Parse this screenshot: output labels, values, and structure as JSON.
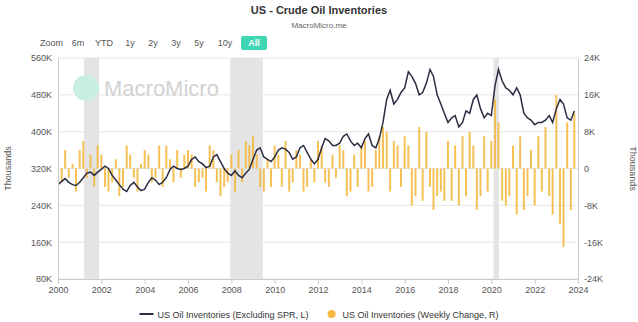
{
  "chart_data": {
    "type": "combo",
    "title": "US - Crude Oil Inventories",
    "subtitle": "MacroMicro.me",
    "watermark": "MacroMicro",
    "zoom_label": "Zoom",
    "zoom_buttons": [
      "6m",
      "YTD",
      "1y",
      "2y",
      "3y",
      "5y",
      "10y",
      "All"
    ],
    "y_label": "Thousands",
    "y2_label": "Thousands",
    "grid": true,
    "legend": "bottom",
    "bands": [
      [
        2001.2,
        2001.9
      ],
      [
        2007.95,
        2009.45
      ],
      [
        2020.1,
        2020.35
      ]
    ],
    "xlim": [
      2000,
      2024
    ],
    "xticks": [
      2000,
      2002,
      2004,
      2006,
      2008,
      2010,
      2012,
      2014,
      2016,
      2018,
      2020,
      2022,
      2024
    ],
    "ylim": [
      80000,
      560000
    ],
    "yticks": [
      {
        "value": 80000,
        "label": "80K"
      },
      {
        "value": 160000,
        "label": "160K"
      },
      {
        "value": 240000,
        "label": "240K"
      },
      {
        "value": 320000,
        "label": "320K"
      },
      {
        "value": 400000,
        "label": "400K"
      },
      {
        "value": 480000,
        "label": "480K"
      },
      {
        "value": 560000,
        "label": "560K"
      }
    ],
    "y2lim": [
      -24000,
      24000
    ],
    "y2ticks": [
      {
        "value": -24000,
        "label": "-24K"
      },
      {
        "value": -16000,
        "label": "-16K"
      },
      {
        "value": -8000,
        "label": "-8K"
      },
      0,
      {
        "value": 8000,
        "label": "8K"
      },
      {
        "value": 16000,
        "label": "16K"
      },
      {
        "value": 24000,
        "label": "24K"
      }
    ],
    "x": [
      2000,
      2000.17,
      2000.33,
      2000.5,
      2000.67,
      2000.83,
      2001,
      2001.17,
      2001.33,
      2001.5,
      2001.67,
      2001.83,
      2002,
      2002.17,
      2002.33,
      2002.5,
      2002.67,
      2002.83,
      2003,
      2003.17,
      2003.33,
      2003.5,
      2003.67,
      2003.83,
      2004,
      2004.17,
      2004.33,
      2004.5,
      2004.67,
      2004.83,
      2005,
      2005.17,
      2005.33,
      2005.5,
      2005.67,
      2005.83,
      2006,
      2006.17,
      2006.33,
      2006.5,
      2006.67,
      2006.83,
      2007,
      2007.17,
      2007.33,
      2007.5,
      2007.67,
      2007.83,
      2008,
      2008.17,
      2008.33,
      2008.5,
      2008.67,
      2008.83,
      2009,
      2009.17,
      2009.33,
      2009.5,
      2009.67,
      2009.83,
      2010,
      2010.17,
      2010.33,
      2010.5,
      2010.67,
      2010.83,
      2011,
      2011.17,
      2011.33,
      2011.5,
      2011.67,
      2011.83,
      2012,
      2012.17,
      2012.33,
      2012.5,
      2012.67,
      2012.83,
      2013,
      2013.17,
      2013.33,
      2013.5,
      2013.67,
      2013.83,
      2014,
      2014.17,
      2014.33,
      2014.5,
      2014.67,
      2014.83,
      2015,
      2015.17,
      2015.33,
      2015.5,
      2015.67,
      2015.83,
      2016,
      2016.17,
      2016.33,
      2016.5,
      2016.67,
      2016.83,
      2017,
      2017.17,
      2017.33,
      2017.5,
      2017.67,
      2017.83,
      2018,
      2018.17,
      2018.33,
      2018.5,
      2018.67,
      2018.83,
      2019,
      2019.17,
      2019.33,
      2019.5,
      2019.67,
      2019.83,
      2020,
      2020.17,
      2020.33,
      2020.5,
      2020.67,
      2020.83,
      2021,
      2021.17,
      2021.33,
      2021.5,
      2021.67,
      2021.83,
      2022,
      2022.17,
      2022.33,
      2022.5,
      2022.67,
      2022.83,
      2023,
      2023.17,
      2023.33,
      2023.5,
      2023.67,
      2023.83
    ],
    "series": [
      {
        "name": "US Oil Inventories (Excluding SPR, L)",
        "type": "line",
        "color": "#2b2d42",
        "values": [
          285000,
          292000,
          298000,
          290000,
          285000,
          283000,
          290000,
          300000,
          310000,
          312000,
          305000,
          312000,
          318000,
          325000,
          320000,
          305000,
          295000,
          285000,
          275000,
          270000,
          283000,
          290000,
          280000,
          272000,
          275000,
          290000,
          300000,
          295000,
          285000,
          290000,
          300000,
          318000,
          325000,
          320000,
          318000,
          320000,
          325000,
          340000,
          345000,
          335000,
          330000,
          322000,
          325000,
          345000,
          350000,
          335000,
          320000,
          310000,
          305000,
          315000,
          305000,
          300000,
          310000,
          318000,
          340000,
          360000,
          365000,
          345000,
          340000,
          335000,
          345000,
          360000,
          365000,
          362000,
          355000,
          340000,
          345000,
          365000,
          370000,
          355000,
          340000,
          330000,
          340000,
          365000,
          385000,
          380000,
          370000,
          370000,
          375000,
          390000,
          395000,
          380000,
          370000,
          375000,
          365000,
          385000,
          395000,
          370000,
          365000,
          385000,
          420000,
          470000,
          490000,
          460000,
          470000,
          485000,
          495000,
          530000,
          520000,
          505000,
          480000,
          485000,
          505000,
          535000,
          520000,
          480000,
          460000,
          440000,
          420000,
          430000,
          435000,
          410000,
          420000,
          445000,
          440000,
          470000,
          480000,
          450000,
          430000,
          440000,
          435000,
          500000,
          535000,
          510000,
          495000,
          490000,
          480000,
          495000,
          480000,
          440000,
          430000,
          425000,
          415000,
          420000,
          420000,
          425000,
          435000,
          420000,
          450000,
          470000,
          460000,
          430000,
          425000,
          445000
        ]
      },
      {
        "name": "US Oil Inventories (Weekly Change, R)",
        "type": "bar",
        "axis": "y2",
        "color": "#f5b942",
        "values": [
          2000,
          -3000,
          4000,
          -2000,
          1000,
          -5000,
          4000,
          6000,
          -2000,
          3000,
          -4000,
          5000,
          3000,
          -4000,
          -5000,
          -3000,
          2000,
          -6000,
          -4000,
          5000,
          3000,
          -2000,
          -5000,
          1000,
          4000,
          3000,
          -3000,
          -2000,
          5000,
          -4000,
          5000,
          2000,
          -3000,
          4000,
          -2000,
          3000,
          4000,
          3000,
          -4000,
          -3000,
          -2000,
          -5000,
          5000,
          4000,
          -3000,
          -6000,
          -4000,
          -3000,
          3000,
          -5000,
          4000,
          -3000,
          6000,
          5000,
          7000,
          3000,
          -4000,
          -5000,
          2000,
          -4000,
          5000,
          3000,
          -4000,
          6000,
          -5000,
          -3000,
          4000,
          3000,
          -5000,
          -4000,
          2000,
          -3000,
          6000,
          5000,
          -3000,
          -4000,
          3000,
          -2000,
          5000,
          4000,
          -6000,
          -5000,
          3000,
          -4000,
          5000,
          6000,
          -5000,
          -4000,
          4000,
          7000,
          9000,
          8000,
          -5000,
          6000,
          5000,
          -4000,
          7000,
          5000,
          -8000,
          -6000,
          9000,
          -7000,
          8000,
          -4000,
          -9000,
          -6000,
          -5000,
          -7000,
          6000,
          -7000,
          5000,
          -8000,
          7000,
          -6000,
          8000,
          5000,
          -9000,
          -6000,
          7000,
          -5000,
          6000,
          15000,
          10000,
          -7000,
          -8000,
          -6000,
          5000,
          -10000,
          7000,
          -9000,
          -6000,
          4000,
          -8000,
          7000,
          -5000,
          9000,
          -6000,
          -10000,
          16000,
          -12000,
          -17000,
          10000,
          -9000,
          12000
        ]
      }
    ]
  }
}
